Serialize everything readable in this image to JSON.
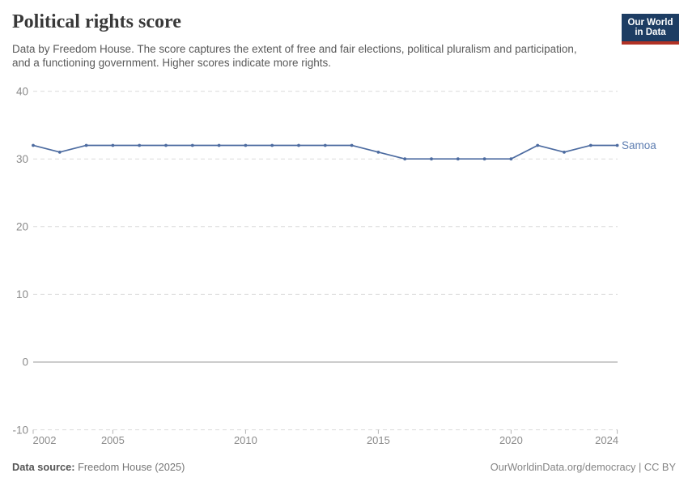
{
  "header": {
    "title": "Political rights score",
    "subtitle": "Data by Freedom House. The score captures the extent of free and fair elections, political pluralism and participation, and a functioning government. Higher scores indicate more rights.",
    "logo": {
      "line1": "Our World",
      "line2": "in Data",
      "bg_color": "#1d3d63",
      "bar_color": "#b13225"
    }
  },
  "chart_data": {
    "type": "line",
    "title": "Political rights score",
    "xlabel": "",
    "ylabel": "",
    "x": [
      2002,
      2003,
      2004,
      2005,
      2006,
      2007,
      2008,
      2009,
      2010,
      2011,
      2012,
      2013,
      2014,
      2015,
      2016,
      2017,
      2018,
      2019,
      2020,
      2021,
      2022,
      2023,
      2024
    ],
    "series": [
      {
        "name": "Samoa",
        "values": [
          32,
          31,
          32,
          32,
          32,
          32,
          32,
          32,
          32,
          32,
          32,
          32,
          32,
          31,
          30,
          30,
          30,
          30,
          30,
          32,
          31,
          32,
          32
        ],
        "color": "#4c6ba0",
        "label_color": "#5d7db1"
      }
    ],
    "xlim": [
      2002,
      2024
    ],
    "ylim": [
      -10,
      40
    ],
    "yticks": [
      40,
      30,
      20,
      10,
      0,
      -10
    ],
    "xticks": [
      2002,
      2005,
      2010,
      2015,
      2020,
      2024
    ],
    "grid": "dashed-horizontal",
    "legend_position": "end-of-line-label"
  },
  "colors": {
    "axis_label": "#8b8b8b",
    "gridline": "#dcdcdc",
    "zero_line": "#9a9a9a",
    "tick_mark": "#b3b3b3"
  },
  "footer": {
    "source_label": "Data source:",
    "source_value": " Freedom House (2025)",
    "right_text": "OurWorldinData.org/democracy | CC BY"
  }
}
